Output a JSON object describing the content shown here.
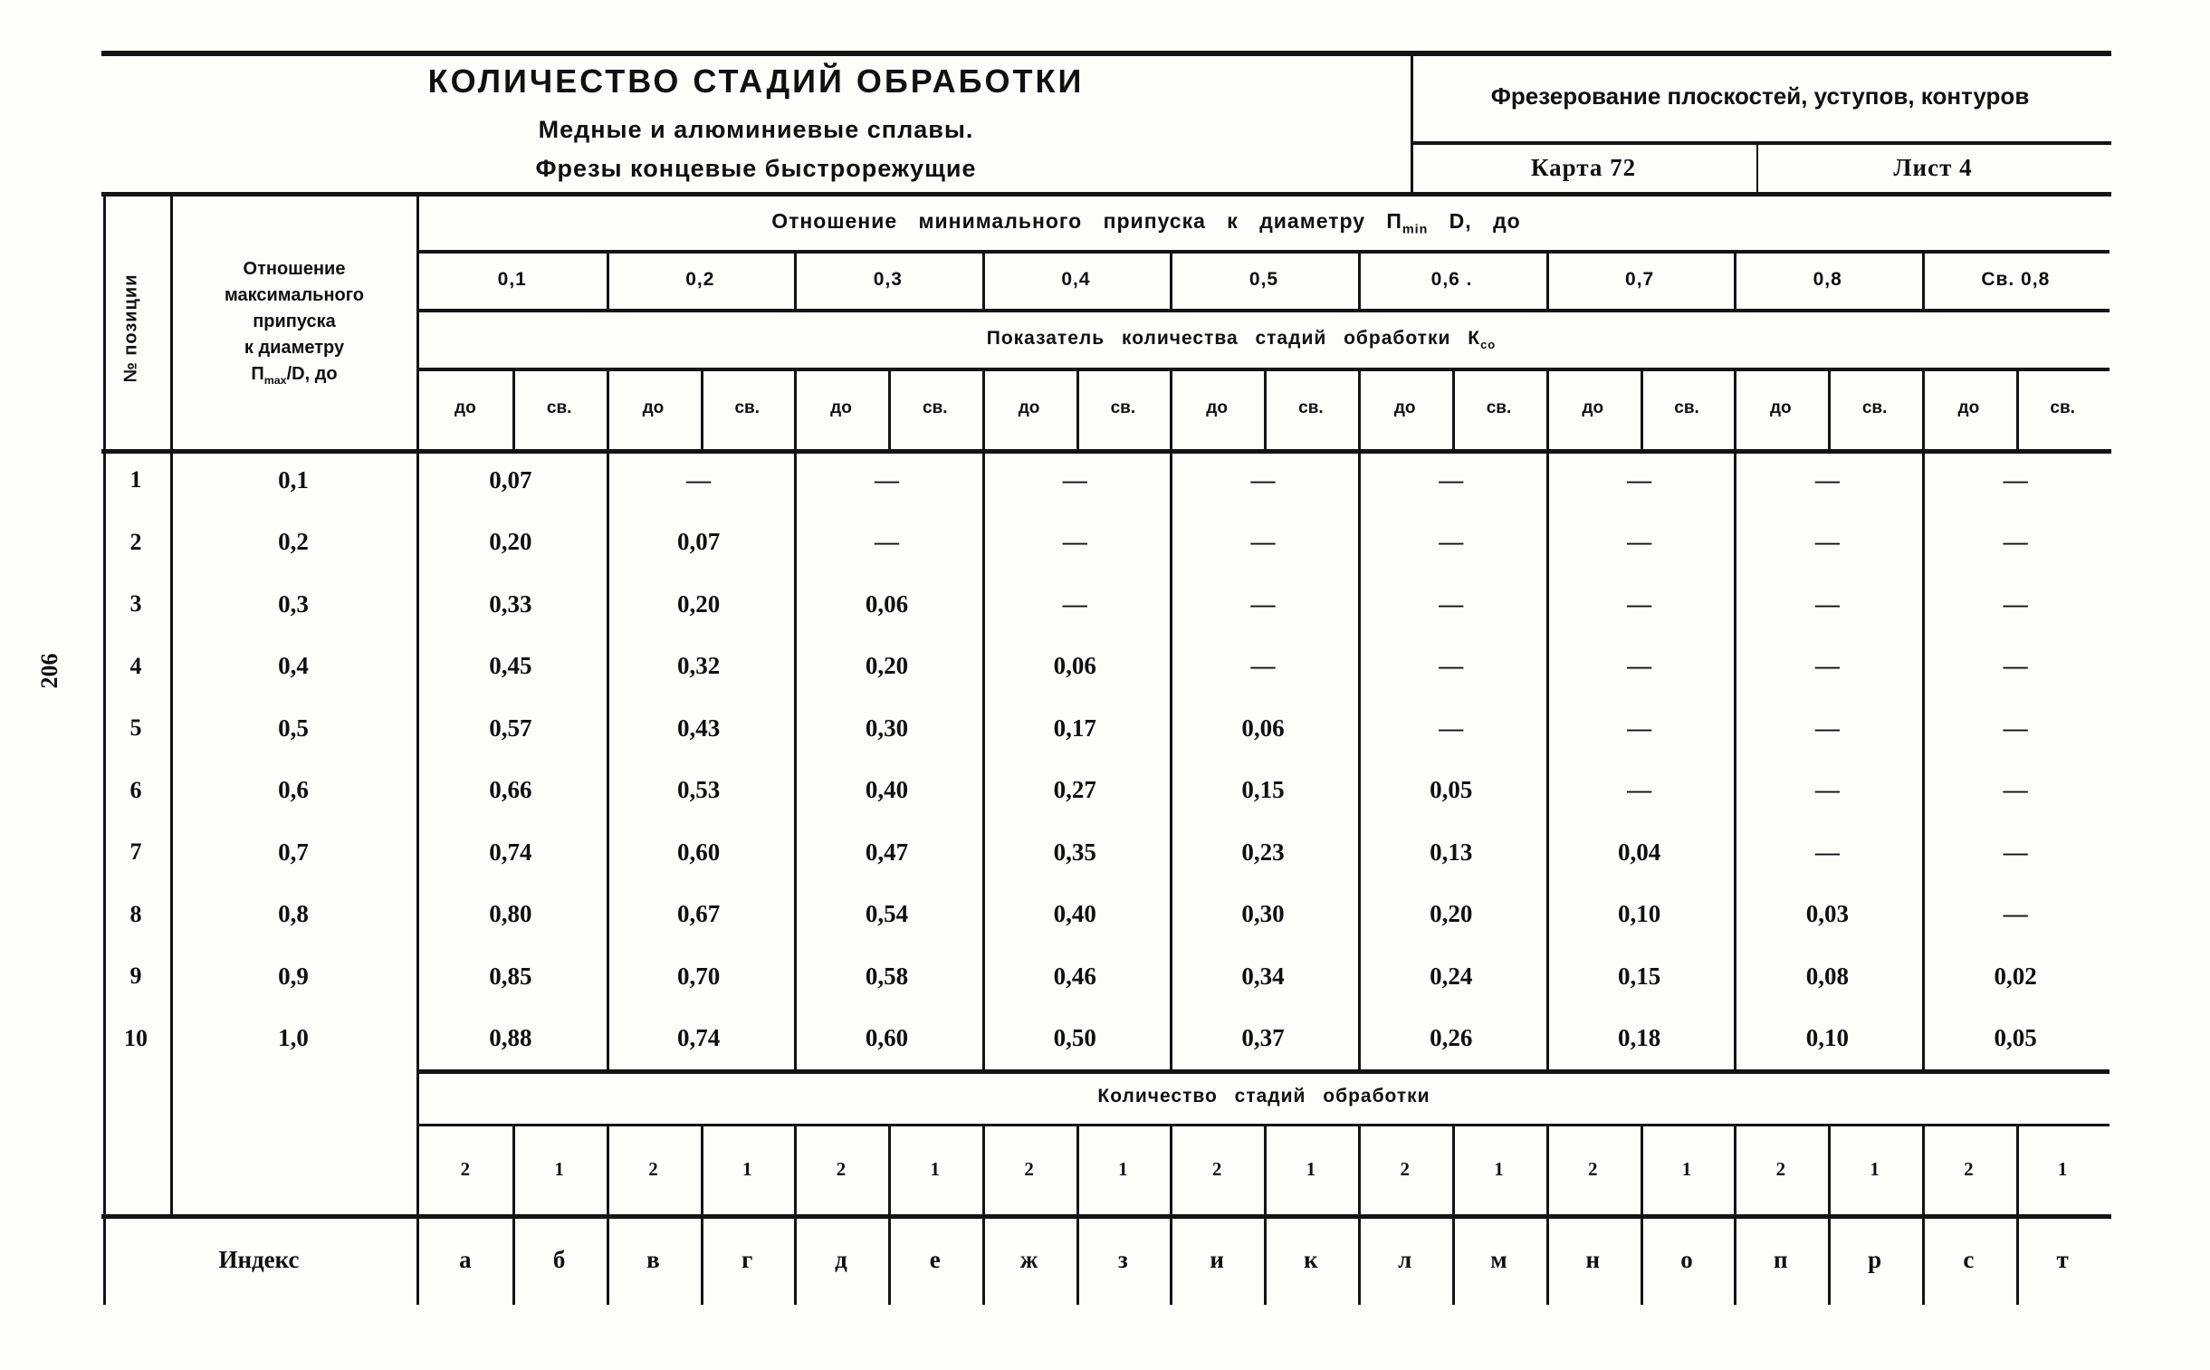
{
  "page_number": "206",
  "header": {
    "title": "КОЛИЧЕСТВО СТАДИЙ ОБРАБОТКИ",
    "subtitle1": "Медные и алюминиевые сплавы.",
    "subtitle2": "Фрезы концевые быстрорежущие",
    "operation": "Фрезерование плоскостей, уступов, контуров",
    "card": "Карта 72",
    "sheet": "Лист 4"
  },
  "table": {
    "position_header": "№ позиции",
    "max_ratio_lines": [
      "Отношение",
      "максимального",
      "припуска",
      "к диаметру"
    ],
    "max_formula": {
      "base": "П",
      "sub": "max",
      "rest": "/D, до"
    },
    "min_ratio_text": "Отношение минимального припуска к диаметру",
    "min_formula": {
      "base": "П",
      "sub": "min",
      "rest": " D, до"
    },
    "col_headers": [
      "0,1",
      "0,2",
      "0,3",
      "0,4",
      "0,5",
      "0,6 .",
      "0,7",
      "0,8",
      "Св. 0,8"
    ],
    "indicator_text": "Показатель количества стадий обработки",
    "indicator_formula": {
      "base": "К",
      "sub": "со"
    },
    "sub_do": "до",
    "sub_sv": "св.",
    "rows": [
      {
        "num": "1",
        "ratio": "0,1",
        "v": [
          "0,07",
          "—",
          "—",
          "—",
          "—",
          "—",
          "—",
          "—",
          "—"
        ]
      },
      {
        "num": "2",
        "ratio": "0,2",
        "v": [
          "0,20",
          "0,07",
          "—",
          "—",
          "—",
          "—",
          "—",
          "—",
          "—"
        ]
      },
      {
        "num": "3",
        "ratio": "0,3",
        "v": [
          "0,33",
          "0,20",
          "0,06",
          "—",
          "—",
          "—",
          "—",
          "—",
          "—"
        ]
      },
      {
        "num": "4",
        "ratio": "0,4",
        "v": [
          "0,45",
          "0,32",
          "0,20",
          "0,06",
          "—",
          "—",
          "—",
          "—",
          "—"
        ]
      },
      {
        "num": "5",
        "ratio": "0,5",
        "v": [
          "0,57",
          "0,43",
          "0,30",
          "0,17",
          "0,06",
          "—",
          "—",
          "—",
          "—"
        ]
      },
      {
        "num": "6",
        "ratio": "0,6",
        "v": [
          "0,66",
          "0,53",
          "0,40",
          "0,27",
          "0,15",
          "0,05",
          "—",
          "—",
          "—"
        ]
      },
      {
        "num": "7",
        "ratio": "0,7",
        "v": [
          "0,74",
          "0,60",
          "0,47",
          "0,35",
          "0,23",
          "0,13",
          "0,04",
          "—",
          "—"
        ]
      },
      {
        "num": "8",
        "ratio": "0,8",
        "v": [
          "0,80",
          "0,67",
          "0,54",
          "0,40",
          "0,30",
          "0,20",
          "0,10",
          "0,03",
          "—"
        ]
      },
      {
        "num": "9",
        "ratio": "0,9",
        "v": [
          "0,85",
          "0,70",
          "0,58",
          "0,46",
          "0,34",
          "0,24",
          "0,15",
          "0,08",
          "0,02"
        ]
      },
      {
        "num": "10",
        "ratio": "1,0",
        "v": [
          "0,88",
          "0,74",
          "0,60",
          "0,50",
          "0,37",
          "0,26",
          "0,18",
          "0,10",
          "0,05"
        ]
      }
    ],
    "stages_header": "Количество стадий обработки",
    "stage_counts": [
      "2",
      "1",
      "2",
      "1",
      "2",
      "1",
      "2",
      "1",
      "2",
      "1",
      "2",
      "1",
      "2",
      "1",
      "2",
      "1",
      "2",
      "1"
    ],
    "index_label": "Индекс",
    "index_letters": [
      "а",
      "б",
      "в",
      "г",
      "д",
      "е",
      "ж",
      "з",
      "и",
      "к",
      "л",
      "м",
      "н",
      "о",
      "п",
      "р",
      "с",
      "т"
    ]
  }
}
